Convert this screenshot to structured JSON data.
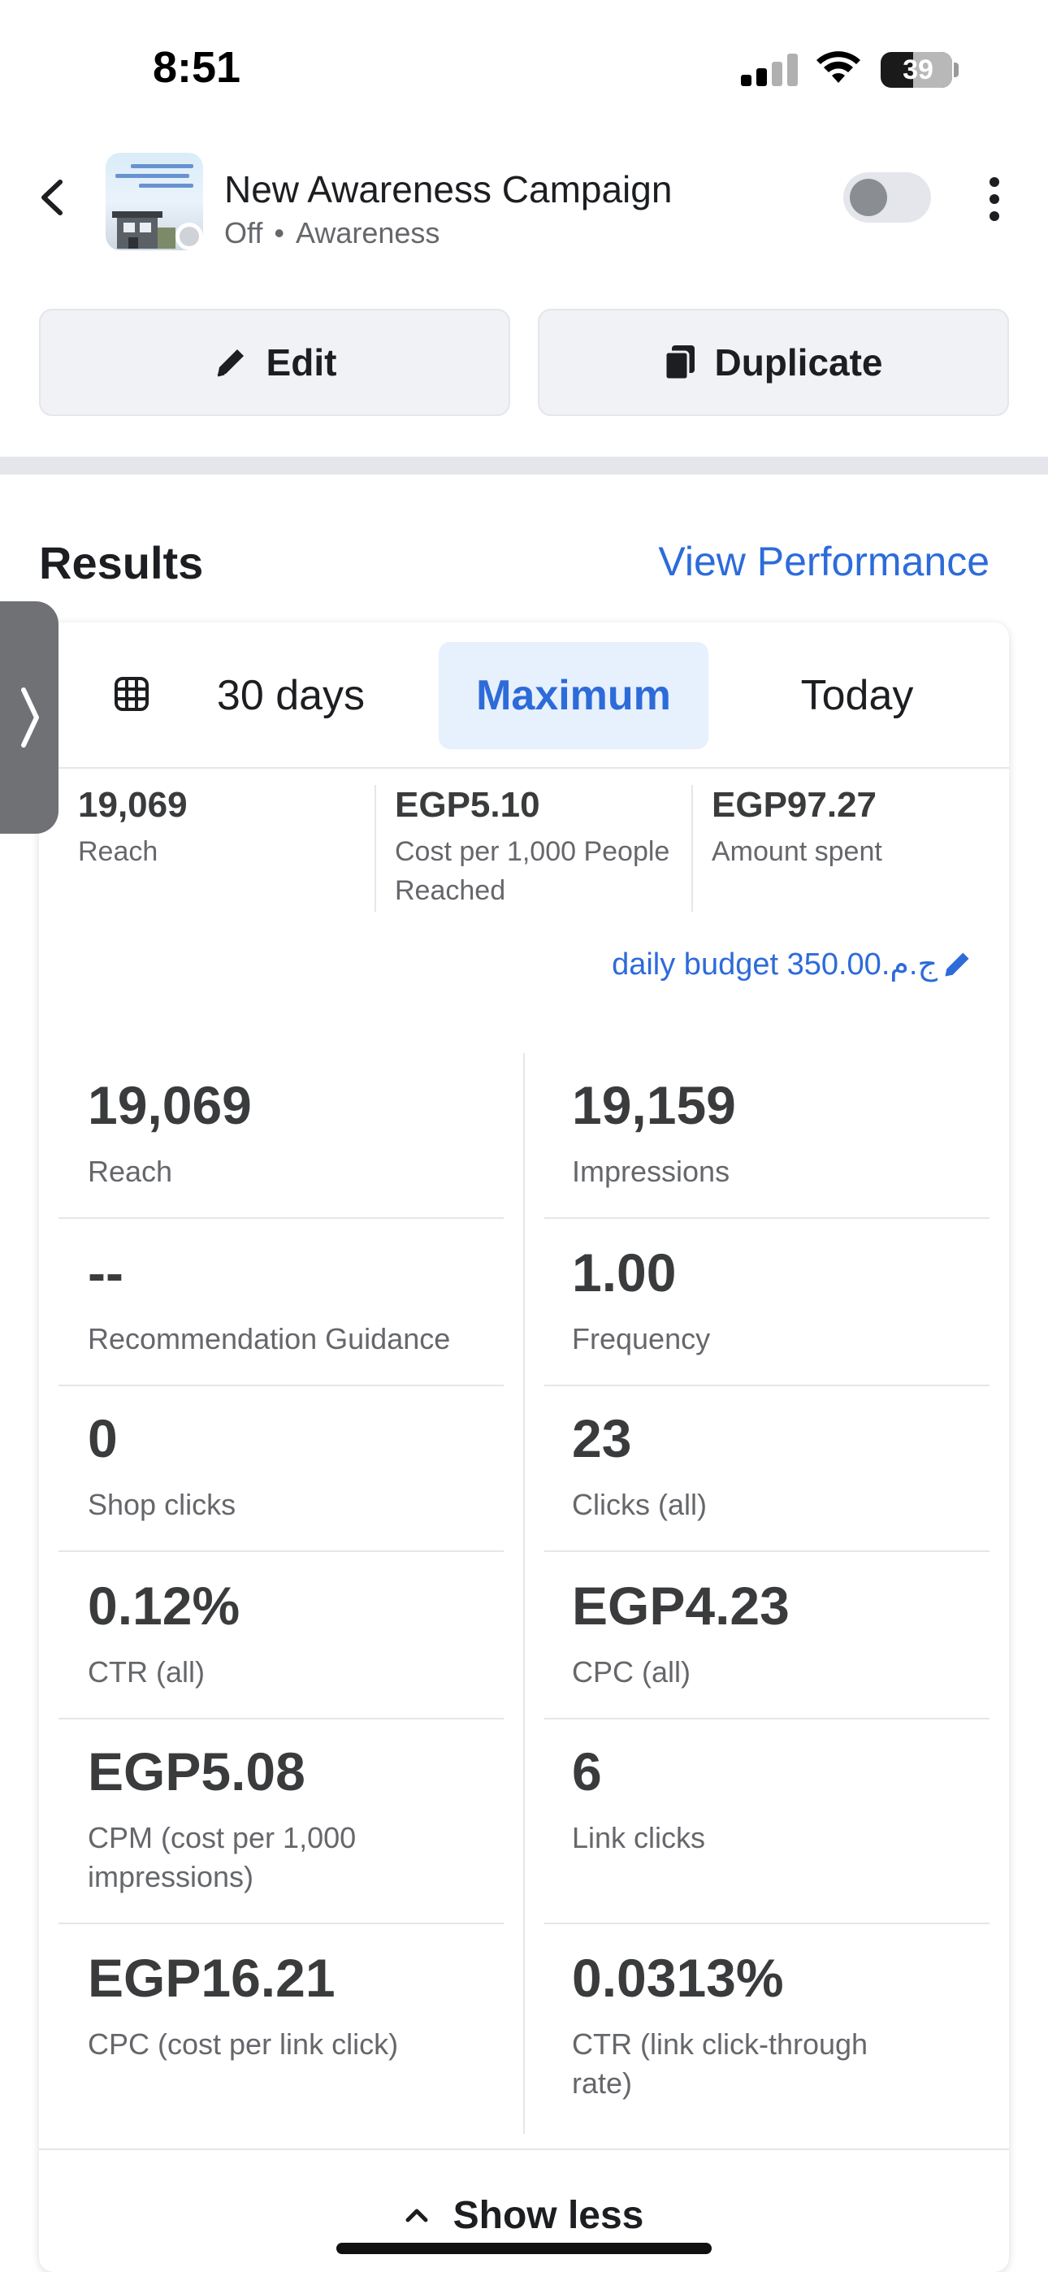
{
  "status_bar": {
    "time": "8:51",
    "battery": "39"
  },
  "header": {
    "title": "New Awareness Campaign",
    "status": "Off",
    "objective": "Awareness",
    "separator": "•"
  },
  "actions": {
    "edit_label": "Edit",
    "duplicate_label": "Duplicate"
  },
  "results": {
    "title": "Results",
    "view_performance": "View Performance"
  },
  "tabs": [
    {
      "label": "30 days",
      "selected": false
    },
    {
      "label": "Maximum",
      "selected": true
    },
    {
      "label": "Today",
      "selected": false
    }
  ],
  "summary": [
    {
      "value": "19,069",
      "label": "Reach"
    },
    {
      "value": "EGP5.10",
      "label": "Cost per 1,000 People Reached"
    },
    {
      "value": "EGP97.27",
      "label": "Amount spent"
    }
  ],
  "budget": "daily budget 350.00.ج.م",
  "metrics": [
    {
      "value": "19,069",
      "label": "Reach"
    },
    {
      "value": "19,159",
      "label": "Impressions"
    },
    {
      "value": "--",
      "label": "Recommendation Guidance"
    },
    {
      "value": "1.00",
      "label": "Frequency"
    },
    {
      "value": "0",
      "label": "Shop clicks"
    },
    {
      "value": "23",
      "label": "Clicks (all)"
    },
    {
      "value": "0.12%",
      "label": "CTR (all)"
    },
    {
      "value": "EGP4.23",
      "label": "CPC (all)"
    },
    {
      "value": "EGP5.08",
      "label": "CPM (cost per 1,000 impressions)"
    },
    {
      "value": "6",
      "label": "Link clicks"
    },
    {
      "value": "EGP16.21",
      "label": "CPC (cost per link click)"
    },
    {
      "value": "0.0313%",
      "label": "CTR (link click-through rate)"
    }
  ],
  "show_less": "Show less",
  "colors": {
    "accent": "#2d6bd9",
    "tab_selected_bg": "#e7f0fd",
    "button_bg": "#f0f2f5"
  }
}
